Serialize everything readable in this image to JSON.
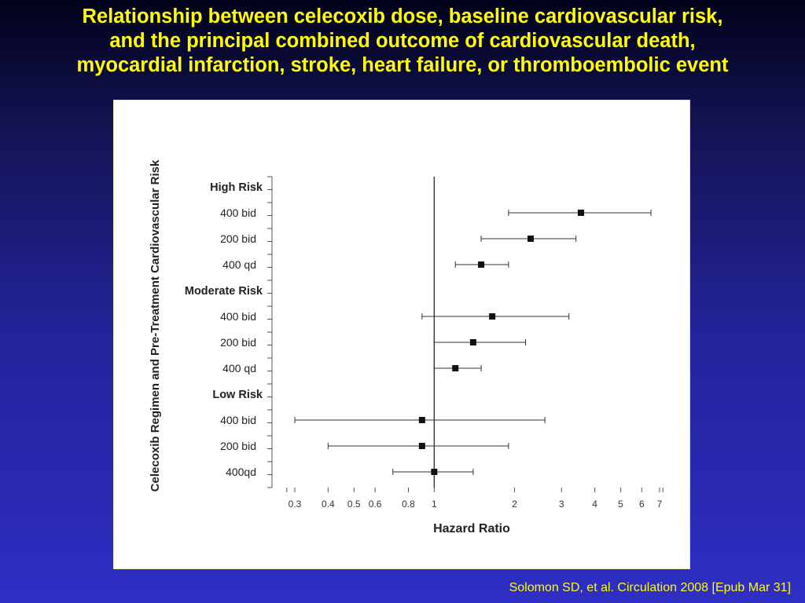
{
  "slide": {
    "title_lines": [
      "Relationship between celecoxib dose, baseline cardiovascular risk,",
      "and the principal combined outcome of cardiovascular death,",
      "myocardial infarction, stroke, heart failure, or thromboembolic event"
    ],
    "citation": "Solomon SD, et al. Circulation 2008 [Epub Mar 31]"
  },
  "chart_data": {
    "type": "forest",
    "xlabel": "Hazard Ratio",
    "ylabel": "Celecoxib Regimen and Pre-Treatment Cardiovascular Risk",
    "x_scale": "log",
    "xlim": [
      0.28,
      7.2
    ],
    "x_ticks": [
      0.3,
      0.4,
      0.5,
      0.6,
      0.8,
      1,
      2,
      3,
      4,
      5,
      6,
      7
    ],
    "x_tick_labels": [
      "0.3",
      "0.4",
      "0.5",
      "0.6",
      "0.8",
      "1",
      "2",
      "3",
      "4",
      "5",
      "6",
      "7"
    ],
    "reference_line": 1,
    "groups": [
      {
        "name": "High Risk",
        "rows": [
          {
            "label": "400 bid",
            "hr": 3.55,
            "lo": 1.9,
            "hi": 6.5
          },
          {
            "label": "200 bid",
            "hr": 2.3,
            "lo": 1.5,
            "hi": 3.4
          },
          {
            "label": "400 qd",
            "hr": 1.5,
            "lo": 1.2,
            "hi": 1.9
          }
        ]
      },
      {
        "name": "Moderate Risk",
        "rows": [
          {
            "label": "400 bid",
            "hr": 1.65,
            "lo": 0.9,
            "hi": 3.2
          },
          {
            "label": "200 bid",
            "hr": 1.4,
            "lo": 1.0,
            "hi": 2.2
          },
          {
            "label": "400 qd",
            "hr": 1.2,
            "lo": 1.0,
            "hi": 1.5
          }
        ]
      },
      {
        "name": "Low Risk",
        "rows": [
          {
            "label": "400 bid",
            "hr": 0.9,
            "lo": 0.3,
            "hi": 2.6
          },
          {
            "label": "200 bid",
            "hr": 0.9,
            "lo": 0.4,
            "hi": 1.9
          },
          {
            "label": "400qd",
            "hr": 1.0,
            "lo": 0.7,
            "hi": 1.4
          }
        ]
      }
    ]
  }
}
